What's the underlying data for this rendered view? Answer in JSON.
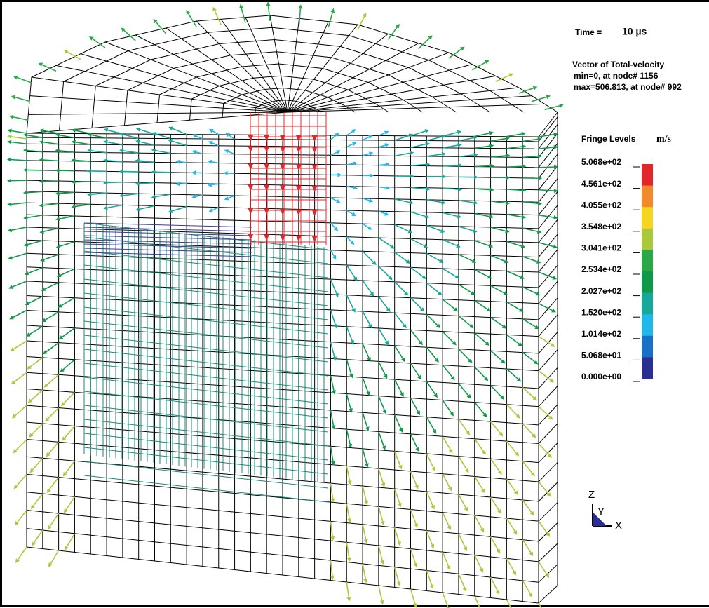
{
  "header": {
    "time_label": "Time =",
    "time_value": "10 µs"
  },
  "info": {
    "title": "Vector of Total-velocity",
    "min": "min=0, at node# 1156",
    "max": "max=506.813, at node# 992"
  },
  "legend": {
    "title": "Fringe Levels",
    "unit": "m/s",
    "labels": [
      "5.068e+02",
      "4.561e+02",
      "4.055e+02",
      "3.548e+02",
      "3.041e+02",
      "2.534e+02",
      "2.027e+02",
      "1.520e+02",
      "1.014e+02",
      "5.068e+01",
      "0.000e+00"
    ],
    "colors": [
      "#e3262b",
      "#f08a2c",
      "#f5d51e",
      "#a9c93b",
      "#2aa848",
      "#0f9a4a",
      "#17a89c",
      "#20b8e8",
      "#1a70c6",
      "#2b2f8f"
    ]
  },
  "triad": {
    "z": "Z",
    "y": "Y",
    "x": "X"
  }
}
